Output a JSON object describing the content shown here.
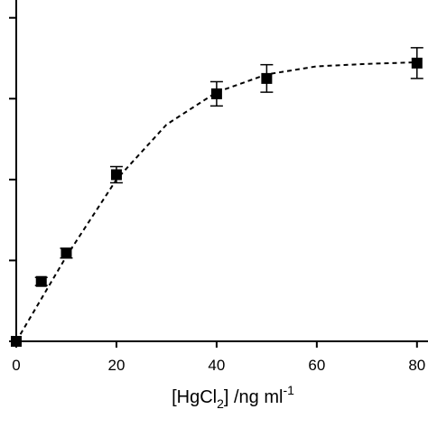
{
  "chart_data": {
    "type": "scatter",
    "x_label_parts": [
      "[HgCl",
      "2",
      "] /ng ml",
      "-1"
    ],
    "x": [
      0,
      5,
      10,
      20,
      40,
      50,
      80
    ],
    "values": [
      0,
      0.74,
      1.09,
      2.06,
      3.06,
      3.25,
      3.44
    ],
    "errors": [
      0,
      0.05,
      0.06,
      0.1,
      0.15,
      0.17,
      0.19
    ],
    "color": "#000000",
    "fit": {
      "x": [
        0,
        10,
        20,
        30,
        40,
        50,
        60,
        70,
        80
      ],
      "values": [
        0,
        1.05,
        2.0,
        2.68,
        3.08,
        3.3,
        3.4,
        3.43,
        3.45
      ]
    },
    "xlim": [
      0,
      82.2
    ],
    "ylim": [
      0,
      4.22
    ],
    "xticks": [
      0,
      20,
      40,
      60,
      80
    ],
    "yticks": [
      0,
      1,
      2,
      3,
      4
    ]
  }
}
